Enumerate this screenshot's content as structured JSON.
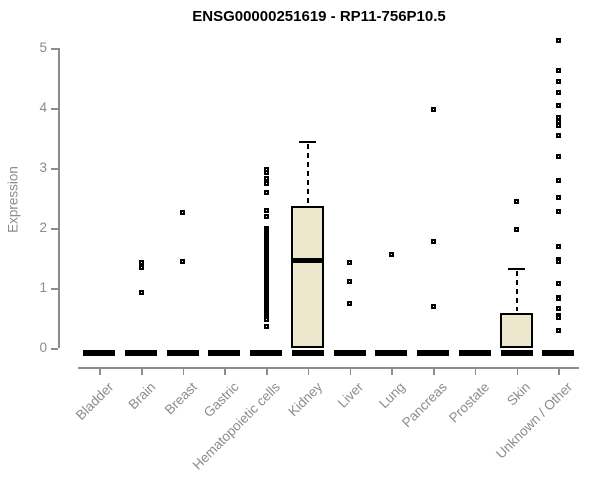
{
  "title": "ENSG00000251619 - RP11-756P10.5",
  "colors": {
    "box_fill": "#EDE7CE",
    "box_border": "#000000",
    "point": "#000000",
    "axis": "#8C8C8C",
    "tick_label": "#8C8C8C",
    "title": "#000000"
  },
  "chart_data": {
    "type": "boxplot",
    "title": "ENSG00000251619 - RP11-756P10.5",
    "xlabel": "",
    "ylabel": "Expression",
    "ylim": [
      0,
      5.2
    ],
    "yticks": [
      0,
      1,
      2,
      3,
      4,
      5
    ],
    "grid": false,
    "legend": false,
    "categories": [
      "Bladder",
      "Brain",
      "Breast",
      "Gastric",
      "Hematopoietic cells",
      "Kidney",
      "Liver",
      "Lung",
      "Pancreas",
      "Prostate",
      "Skin",
      "Unknown / Other"
    ],
    "series": [
      {
        "category": "Bladder",
        "q1": 0,
        "median": 0,
        "q3": 0,
        "whisker_low": 0,
        "whisker_high": 0,
        "outliers": []
      },
      {
        "category": "Brain",
        "q1": 0,
        "median": 0,
        "q3": 0,
        "whisker_low": 0,
        "whisker_high": 0,
        "outliers": [
          1.42,
          1.35,
          0.93
        ]
      },
      {
        "category": "Breast",
        "q1": 0,
        "median": 0,
        "q3": 0,
        "whisker_low": 0,
        "whisker_high": 0,
        "outliers": [
          2.26,
          1.45
        ]
      },
      {
        "category": "Gastric",
        "q1": 0,
        "median": 0,
        "q3": 0,
        "whisker_low": 0,
        "whisker_high": 0,
        "outliers": []
      },
      {
        "category": "Hematopoietic cells",
        "q1": 0,
        "median": 0,
        "q3": 0,
        "whisker_low": 0,
        "whisker_high": 0,
        "outliers": [
          2.98,
          2.92,
          2.83,
          2.75,
          2.6,
          2.3,
          2.19,
          0.47,
          0.36
        ],
        "dense_strip": {
          "min": 0.45,
          "max": 2.03,
          "note": "many overlapping outlier points"
        }
      },
      {
        "category": "Kidney",
        "q1": 0,
        "median": 1.46,
        "q3": 2.36,
        "whisker_low": 0,
        "whisker_high": 3.45,
        "outliers": []
      },
      {
        "category": "Liver",
        "q1": 0,
        "median": 0,
        "q3": 0,
        "whisker_low": 0,
        "whisker_high": 0,
        "outliers": [
          1.42,
          1.11,
          0.74
        ]
      },
      {
        "category": "Lung",
        "q1": 0,
        "median": 0,
        "q3": 0,
        "whisker_low": 0,
        "whisker_high": 0,
        "outliers": [
          1.56
        ]
      },
      {
        "category": "Pancreas",
        "q1": 0,
        "median": 0,
        "q3": 0,
        "whisker_low": 0,
        "whisker_high": 0,
        "outliers": [
          3.98,
          1.78,
          0.7
        ]
      },
      {
        "category": "Prostate",
        "q1": 0,
        "median": 0,
        "q3": 0,
        "whisker_low": 0,
        "whisker_high": 0,
        "outliers": []
      },
      {
        "category": "Skin",
        "q1": 0,
        "median": 0,
        "q3": 0.58,
        "whisker_low": 0,
        "whisker_high": 1.33,
        "outliers": [
          2.45,
          1.97
        ]
      },
      {
        "category": "Unknown / Other",
        "q1": 0,
        "median": 0,
        "q3": 0,
        "whisker_low": 0,
        "whisker_high": 0,
        "outliers": [
          5.12,
          4.62,
          4.44,
          4.26,
          4.04,
          3.85,
          3.77,
          3.71,
          3.55,
          3.2,
          2.8,
          2.51,
          2.28,
          1.69,
          1.48,
          1.44,
          1.08,
          0.85,
          0.82,
          0.66,
          0.54,
          0.51,
          0.3
        ]
      }
    ]
  }
}
